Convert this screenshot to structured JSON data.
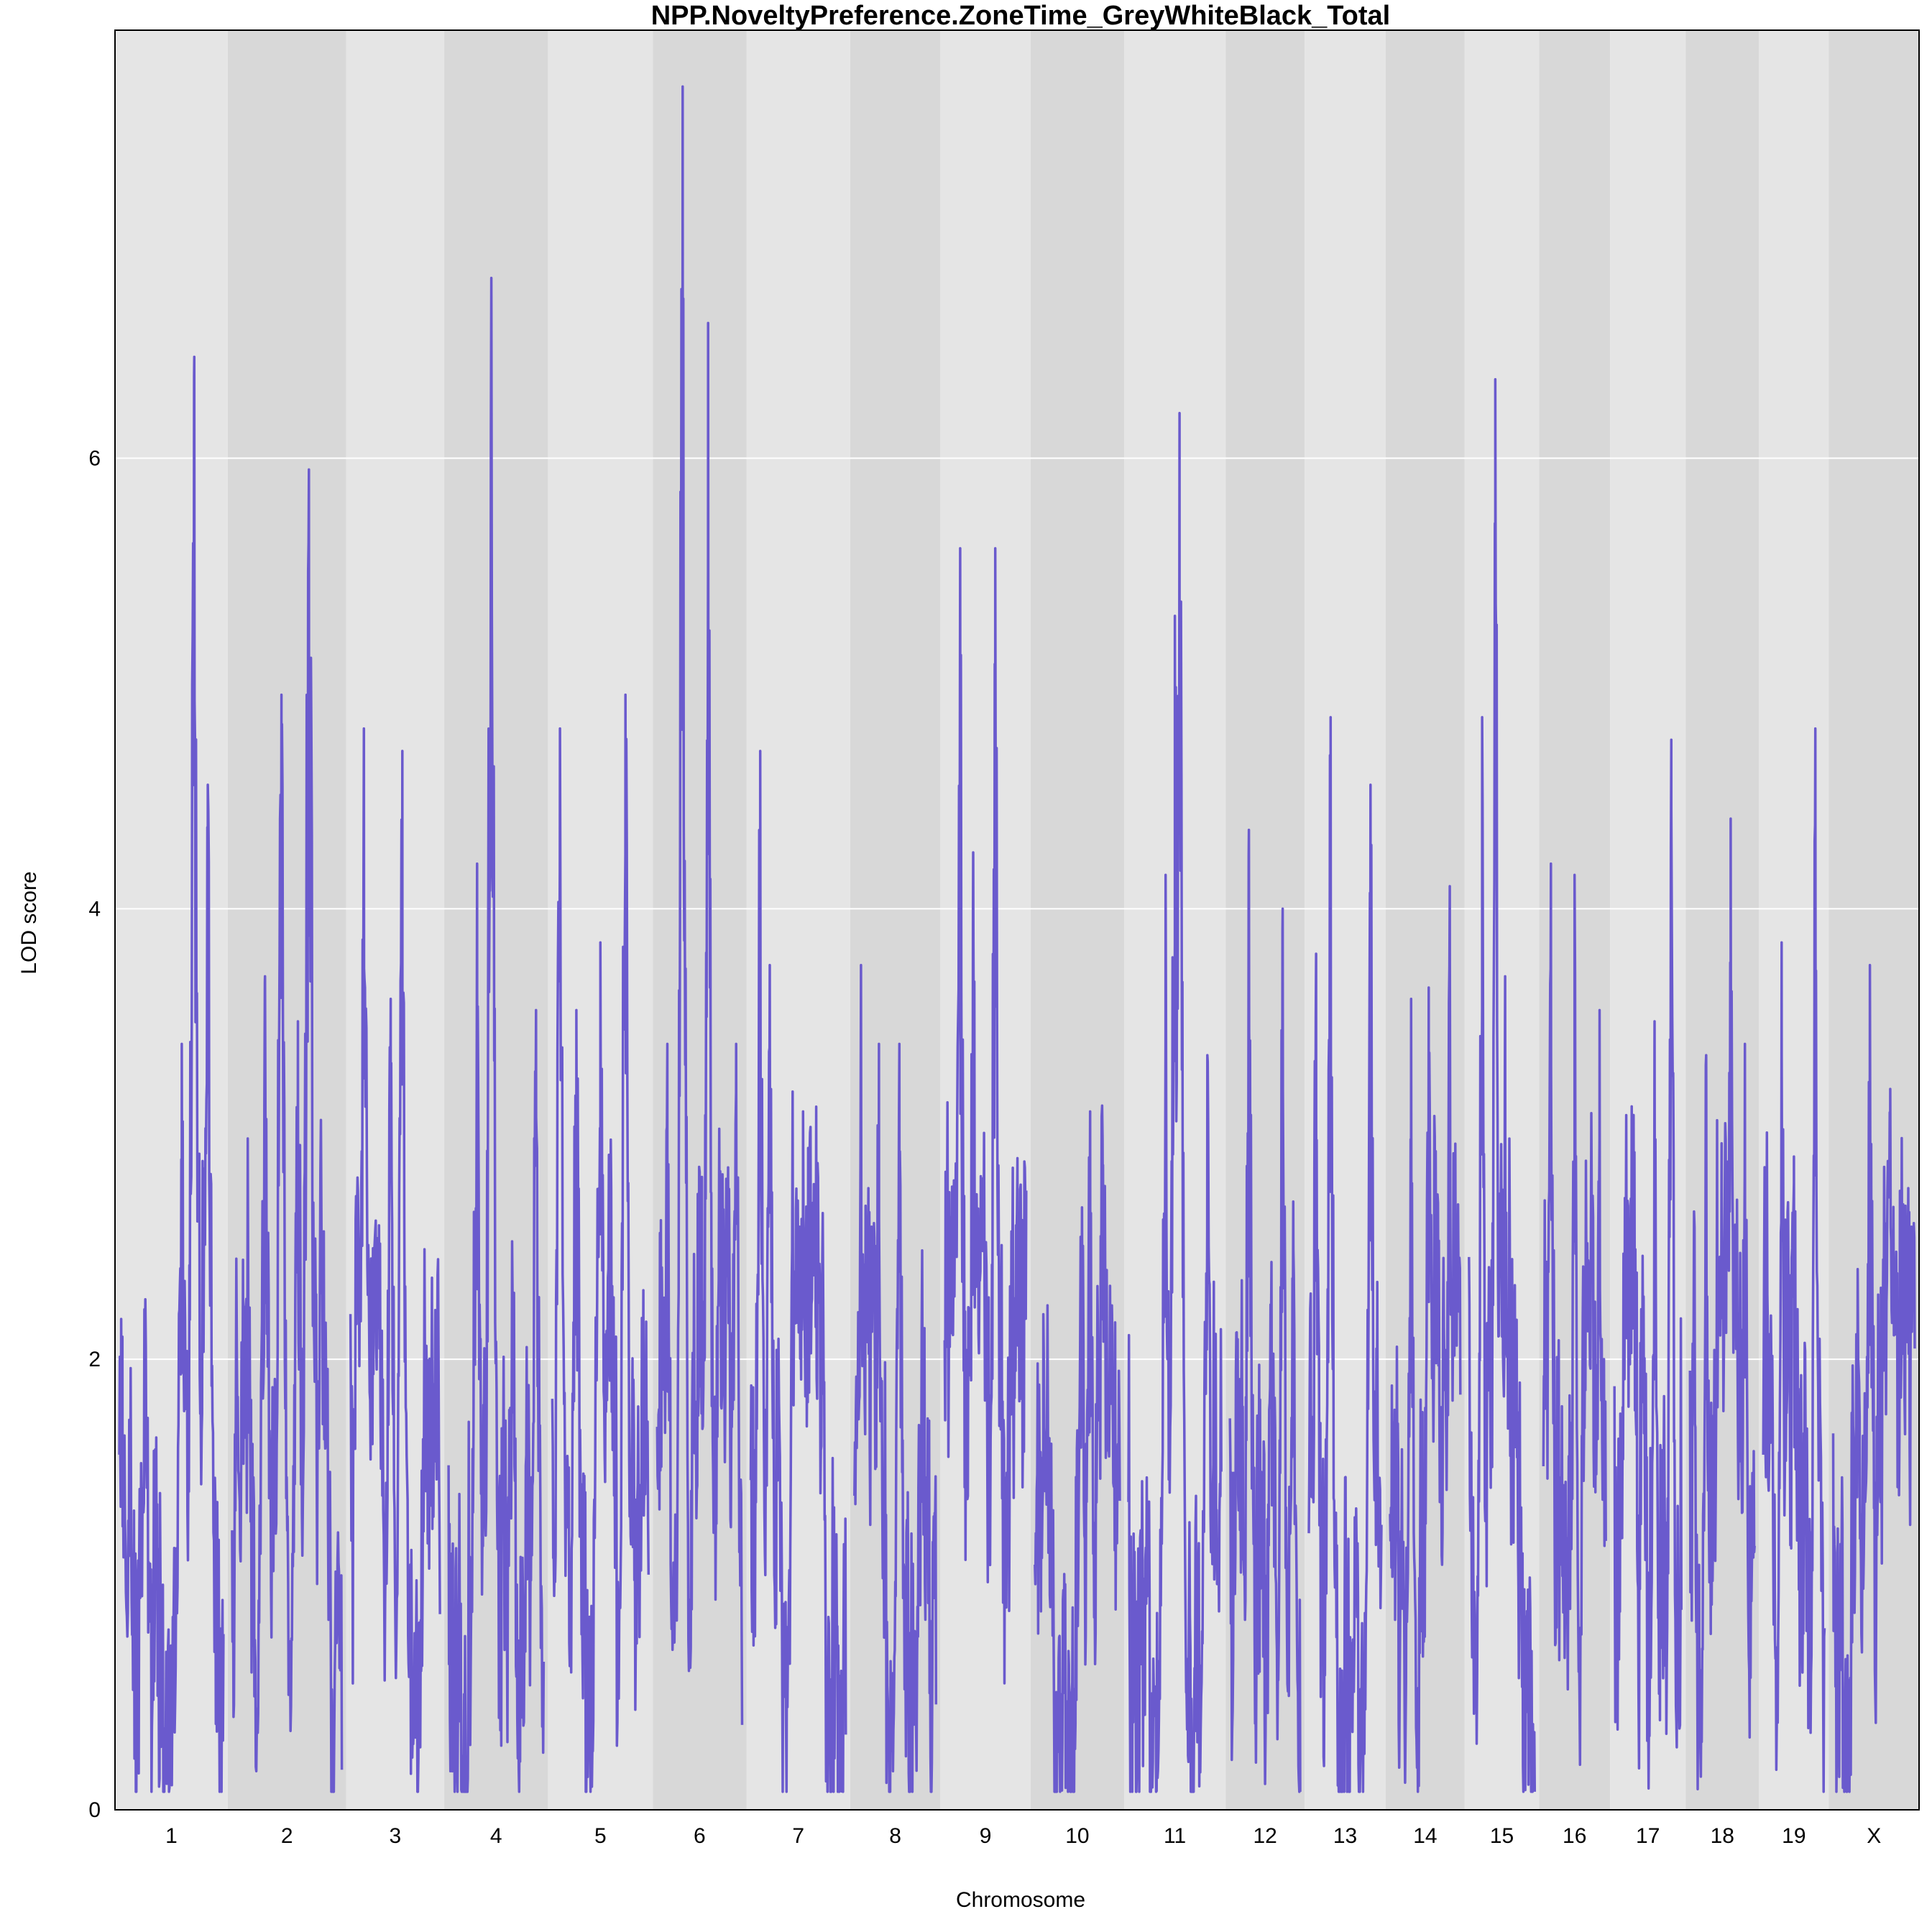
{
  "chart_data": {
    "type": "line",
    "title": "NPP.NoveltyPreference.ZoneTime_GreyWhiteBlack_Total",
    "xlabel": "Chromosome",
    "ylabel": "LOD score",
    "ylim": [
      0,
      7.9
    ],
    "yticks": [
      0,
      2,
      4,
      6
    ],
    "grid": true,
    "line_color": "#6A5ACD",
    "band_colors": [
      "#E5E5E5",
      "#D8D8D8"
    ],
    "chromosomes": [
      {
        "name": "1",
        "width": 1.0,
        "peaks": [
          [
            0.72,
            6.45
          ],
          [
            0.85,
            4.55
          ],
          [
            0.03,
            2.1
          ],
          [
            0.6,
            3.4
          ]
        ]
      },
      {
        "name": "2",
        "width": 1.05,
        "peaks": [
          [
            0.7,
            5.95
          ],
          [
            0.45,
            4.95
          ],
          [
            0.6,
            3.5
          ],
          [
            0.3,
            3.7
          ]
        ]
      },
      {
        "name": "3",
        "width": 0.87,
        "peaks": [
          [
            0.15,
            4.8
          ],
          [
            0.58,
            4.7
          ],
          [
            0.45,
            3.6
          ]
        ]
      },
      {
        "name": "4",
        "width": 0.92,
        "peaks": [
          [
            0.45,
            6.8
          ],
          [
            0.3,
            4.2
          ],
          [
            0.92,
            3.55
          ]
        ]
      },
      {
        "name": "5",
        "width": 0.93,
        "peaks": [
          [
            0.08,
            4.8
          ],
          [
            0.76,
            4.95
          ],
          [
            0.5,
            3.85
          ],
          [
            0.25,
            3.55
          ]
        ]
      },
      {
        "name": "6",
        "width": 0.83,
        "peaks": [
          [
            0.3,
            7.65
          ],
          [
            0.6,
            6.6
          ],
          [
            0.12,
            3.4
          ],
          [
            0.93,
            3.4
          ]
        ]
      },
      {
        "name": "7",
        "width": 0.92,
        "peaks": [
          [
            0.1,
            4.7
          ],
          [
            0.55,
            3.1
          ],
          [
            0.2,
            3.75
          ]
        ]
      },
      {
        "name": "8",
        "width": 0.8,
        "peaks": [
          [
            0.08,
            3.75
          ],
          [
            0.55,
            3.4
          ],
          [
            0.3,
            3.4
          ]
        ]
      },
      {
        "name": "9",
        "width": 0.8,
        "peaks": [
          [
            0.19,
            5.6
          ],
          [
            0.62,
            5.6
          ],
          [
            0.35,
            4.25
          ]
        ]
      },
      {
        "name": "10",
        "width": 0.83,
        "peaks": [
          [
            0.65,
            3.1
          ],
          [
            0.1,
            2.2
          ],
          [
            0.8,
            2.6
          ]
        ]
      },
      {
        "name": "11",
        "width": 0.9,
        "peaks": [
          [
            0.55,
            6.2
          ],
          [
            0.5,
            5.3
          ],
          [
            0.4,
            4.15
          ],
          [
            0.85,
            3.35
          ]
        ]
      },
      {
        "name": "12",
        "width": 0.7,
        "peaks": [
          [
            0.27,
            4.35
          ],
          [
            0.75,
            4.0
          ],
          [
            0.9,
            2.7
          ]
        ]
      },
      {
        "name": "13",
        "width": 0.72,
        "peaks": [
          [
            0.3,
            4.85
          ],
          [
            0.85,
            4.55
          ],
          [
            0.1,
            3.8
          ]
        ]
      },
      {
        "name": "14",
        "width": 0.7,
        "peaks": [
          [
            0.85,
            4.1
          ],
          [
            0.3,
            3.6
          ],
          [
            0.55,
            3.65
          ]
        ]
      },
      {
        "name": "15",
        "width": 0.66,
        "peaks": [
          [
            0.4,
            6.35
          ],
          [
            0.2,
            4.85
          ],
          [
            0.55,
            3.7
          ]
        ]
      },
      {
        "name": "16",
        "width": 0.63,
        "peaks": [
          [
            0.12,
            4.2
          ],
          [
            0.5,
            4.15
          ],
          [
            0.9,
            3.55
          ]
        ]
      },
      {
        "name": "17",
        "width": 0.67,
        "peaks": [
          [
            0.85,
            4.75
          ],
          [
            0.6,
            3.5
          ],
          [
            0.25,
            2.7
          ]
        ]
      },
      {
        "name": "18",
        "width": 0.65,
        "peaks": [
          [
            0.63,
            4.4
          ],
          [
            0.25,
            3.35
          ],
          [
            0.85,
            3.4
          ]
        ]
      },
      {
        "name": "19",
        "width": 0.62,
        "peaks": [
          [
            0.85,
            4.8
          ],
          [
            0.3,
            3.85
          ],
          [
            0.5,
            2.9
          ]
        ]
      },
      {
        "name": "X",
        "width": 0.8,
        "peaks": [
          [
            0.45,
            3.75
          ],
          [
            0.7,
            3.2
          ],
          [
            0.3,
            2.4
          ]
        ]
      }
    ]
  }
}
